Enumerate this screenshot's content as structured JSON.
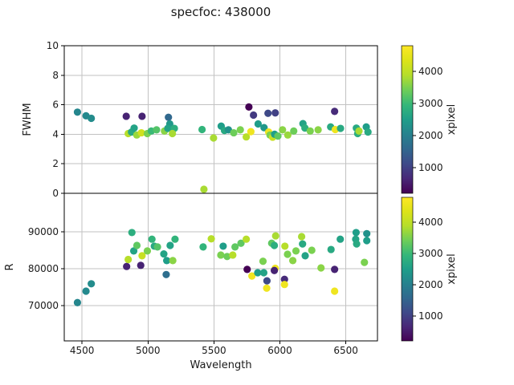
{
  "figure": {
    "title": "specfoc: 438000",
    "background": "#ffffff",
    "text_color": "#1a1a1a",
    "grid_color": "#c2c2c2",
    "spine_color": "#000000"
  },
  "colormap": {
    "name": "viridis",
    "stops": [
      [
        0,
        "#440154"
      ],
      [
        0.1,
        "#482878"
      ],
      [
        0.2,
        "#3e4a89"
      ],
      [
        0.3,
        "#31688e"
      ],
      [
        0.4,
        "#26828e"
      ],
      [
        0.5,
        "#1f9e89"
      ],
      [
        0.6,
        "#35b779"
      ],
      [
        0.7,
        "#6ece58"
      ],
      [
        0.8,
        "#b5de2b"
      ],
      [
        0.9,
        "#dce319"
      ],
      [
        1,
        "#fde725"
      ]
    ]
  },
  "chart_data": [
    {
      "type": "scatter",
      "title": "",
      "xlabel": "",
      "ylabel": "FWHM",
      "xlim": [
        4365,
        6740
      ],
      "ylim": [
        0,
        10
      ],
      "xticks": [
        4500,
        5000,
        5500,
        6000,
        6500
      ],
      "yticks": [
        0,
        2,
        4,
        6,
        8,
        10
      ],
      "show_xticklabels": false,
      "grid": true,
      "marker_radius": 4.6,
      "colorbar": {
        "label": "xpixel",
        "vmin": 200,
        "vmax": 4800,
        "ticks": [
          1000,
          2000,
          3000,
          4000
        ]
      },
      "fields": [
        "wavelength",
        "FWHM",
        "xpixel"
      ],
      "points": [
        [
          4465,
          5.5,
          2100
        ],
        [
          4530,
          5.25,
          2150
        ],
        [
          4570,
          5.08,
          2200
        ],
        [
          4835,
          5.22,
          600
        ],
        [
          4955,
          5.22,
          600
        ],
        [
          4850,
          4.05,
          3900
        ],
        [
          4875,
          4.15,
          2700
        ],
        [
          4895,
          4.42,
          2600
        ],
        [
          4915,
          3.95,
          3700
        ],
        [
          4950,
          4.1,
          4200
        ],
        [
          4995,
          4.05,
          3500
        ],
        [
          5025,
          4.22,
          3000
        ],
        [
          5065,
          4.3,
          3200
        ],
        [
          5125,
          4.22,
          3600
        ],
        [
          5155,
          5.15,
          1600
        ],
        [
          5165,
          4.7,
          2400
        ],
        [
          5150,
          4.4,
          2600
        ],
        [
          5200,
          4.4,
          2800
        ],
        [
          5185,
          4.05,
          3800
        ],
        [
          5410,
          4.32,
          2900
        ],
        [
          5424,
          0.27,
          3800
        ],
        [
          5497,
          3.75,
          3800
        ],
        [
          5555,
          4.55,
          2500
        ],
        [
          5580,
          4.25,
          2700
        ],
        [
          5610,
          4.3,
          2300
        ],
        [
          5650,
          4.1,
          3400
        ],
        [
          5700,
          4.3,
          3500
        ],
        [
          5745,
          3.82,
          3900
        ],
        [
          5780,
          4.18,
          4600
        ],
        [
          5765,
          5.85,
          100
        ],
        [
          5800,
          5.3,
          900
        ],
        [
          5910,
          5.42,
          1100
        ],
        [
          5965,
          5.45,
          1000
        ],
        [
          5835,
          4.7,
          2500
        ],
        [
          5880,
          4.45,
          2400
        ],
        [
          5915,
          4.15,
          4600
        ],
        [
          5925,
          3.95,
          3500
        ],
        [
          5945,
          3.8,
          4100
        ],
        [
          5960,
          4.0,
          2500
        ],
        [
          5985,
          3.88,
          3300
        ],
        [
          6020,
          4.3,
          3600
        ],
        [
          6060,
          3.95,
          3700
        ],
        [
          6105,
          4.22,
          3400
        ],
        [
          6175,
          4.72,
          2600
        ],
        [
          6190,
          4.42,
          2800
        ],
        [
          6230,
          4.22,
          3500
        ],
        [
          6290,
          4.3,
          3600
        ],
        [
          6415,
          5.55,
          700
        ],
        [
          6385,
          4.5,
          2700
        ],
        [
          6420,
          4.32,
          4600
        ],
        [
          6460,
          4.4,
          2700
        ],
        [
          6580,
          4.42,
          2700
        ],
        [
          6590,
          4.05,
          2800
        ],
        [
          6600,
          4.22,
          3800
        ],
        [
          6655,
          4.5,
          2500
        ],
        [
          6668,
          4.15,
          2700
        ]
      ]
    },
    {
      "type": "scatter",
      "title": "",
      "xlabel": "Wavelength",
      "ylabel": "R",
      "xlim": [
        4365,
        6740
      ],
      "ylim": [
        60400,
        100450
      ],
      "xticks": [
        4500,
        5000,
        5500,
        6000,
        6500
      ],
      "yticks": [
        70000,
        80000,
        90000
      ],
      "show_xticklabels": true,
      "grid": true,
      "marker_radius": 4.6,
      "colorbar": {
        "label": "xpixel",
        "vmin": 200,
        "vmax": 4800,
        "ticks": [
          1000,
          2000,
          3000,
          4000
        ]
      },
      "fields": [
        "wavelength",
        "R",
        "xpixel"
      ],
      "points": [
        [
          4465,
          70800,
          2100
        ],
        [
          4530,
          73900,
          2150
        ],
        [
          4570,
          75900,
          2200
        ],
        [
          4838,
          80600,
          600
        ],
        [
          4945,
          80900,
          600
        ],
        [
          4850,
          82500,
          3900
        ],
        [
          4878,
          89800,
          2800
        ],
        [
          4892,
          84800,
          2600
        ],
        [
          4916,
          86300,
          3300
        ],
        [
          4955,
          83500,
          4100
        ],
        [
          4995,
          84800,
          3500
        ],
        [
          5030,
          88000,
          2900
        ],
        [
          5048,
          86100,
          2700
        ],
        [
          5072,
          85900,
          3200
        ],
        [
          5120,
          84000,
          2600
        ],
        [
          5138,
          78400,
          1700
        ],
        [
          5142,
          82200,
          2500
        ],
        [
          5168,
          86300,
          2600
        ],
        [
          5188,
          82200,
          3600
        ],
        [
          5205,
          88000,
          2900
        ],
        [
          5418,
          85900,
          2900
        ],
        [
          5480,
          88100,
          3900
        ],
        [
          5552,
          83700,
          3500
        ],
        [
          5570,
          86100,
          2500
        ],
        [
          5600,
          83300,
          3400
        ],
        [
          5643,
          83700,
          3900
        ],
        [
          5660,
          85900,
          3300
        ],
        [
          5705,
          86900,
          3300
        ],
        [
          5745,
          88000,
          3900
        ],
        [
          5752,
          79800,
          100
        ],
        [
          5788,
          78000,
          4600
        ],
        [
          5832,
          78900,
          2500
        ],
        [
          5872,
          82000,
          3500
        ],
        [
          5878,
          78900,
          2600
        ],
        [
          5902,
          76700,
          1100
        ],
        [
          5900,
          74700,
          4600
        ],
        [
          5938,
          86900,
          3300
        ],
        [
          5958,
          86300,
          2800
        ],
        [
          5968,
          88900,
          3800
        ],
        [
          5965,
          80100,
          4600
        ],
        [
          5958,
          79500,
          600
        ],
        [
          6038,
          86100,
          3900
        ],
        [
          6058,
          83900,
          3500
        ],
        [
          6035,
          77100,
          700
        ],
        [
          6035,
          75700,
          4600
        ],
        [
          6098,
          82200,
          3600
        ],
        [
          6122,
          84800,
          3500
        ],
        [
          6165,
          88700,
          3800
        ],
        [
          6172,
          86700,
          2700
        ],
        [
          6192,
          83500,
          2600
        ],
        [
          6242,
          85000,
          3500
        ],
        [
          6312,
          80200,
          3600
        ],
        [
          6388,
          85200,
          2700
        ],
        [
          6415,
          79800,
          600
        ],
        [
          6415,
          73900,
          4600
        ],
        [
          6458,
          88000,
          2600
        ],
        [
          6578,
          89800,
          2500
        ],
        [
          6575,
          88000,
          2600
        ],
        [
          6582,
          86700,
          2700
        ],
        [
          6659,
          89500,
          2300
        ],
        [
          6659,
          87600,
          2500
        ],
        [
          6641,
          81700,
          3500
        ]
      ]
    }
  ]
}
